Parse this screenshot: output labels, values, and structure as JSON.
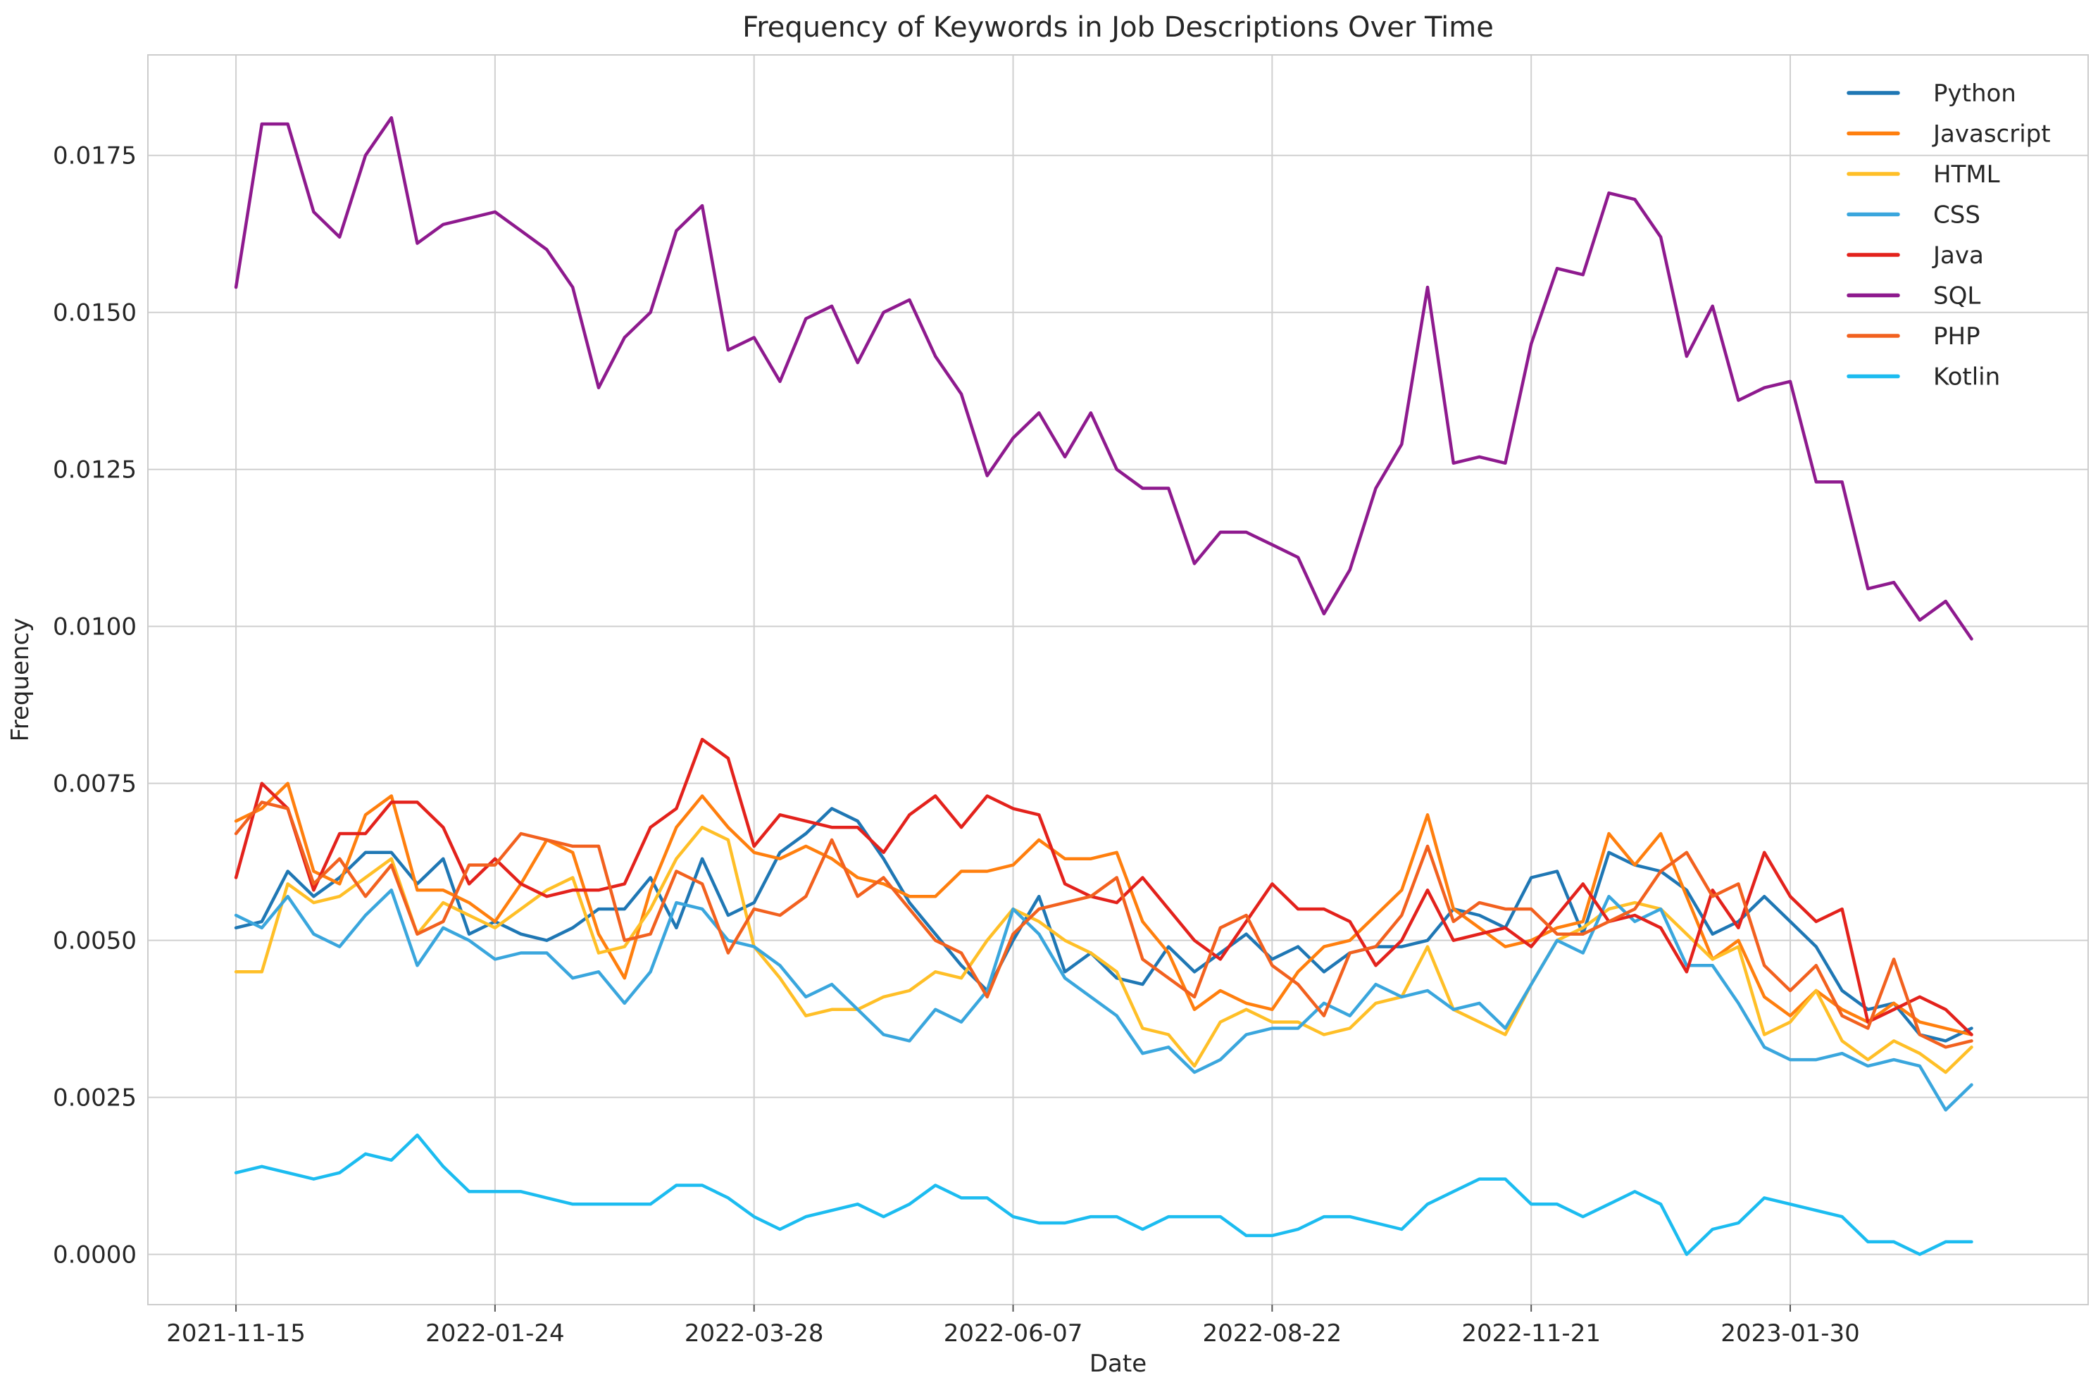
{
  "chart_data": {
    "type": "line",
    "title": "Frequency of Keywords in Job Descriptions Over Time",
    "xlabel": "Date",
    "ylabel": "Frequency",
    "ylim": [
      -0.0008,
      0.0191
    ],
    "xlim": [
      -3.4,
      71.5
    ],
    "grid": true,
    "legend_position": "top-right",
    "x_tick_labels": [
      "2021-11-15",
      "2022-01-24",
      "2022-03-28",
      "2022-06-07",
      "2022-08-22",
      "2022-11-21",
      "2023-01-30"
    ],
    "x_tick_positions": [
      0,
      10,
      20,
      30,
      40,
      50,
      60
    ],
    "y_ticks": [
      0.0,
      0.0025,
      0.005,
      0.0075,
      0.01,
      0.0125,
      0.015,
      0.0175
    ],
    "y_tick_labels": [
      "0.0000",
      "0.0025",
      "0.0050",
      "0.0075",
      "0.0100",
      "0.0125",
      "0.0150",
      "0.0175"
    ],
    "x": [
      0,
      1,
      2,
      3,
      4,
      5,
      6,
      7,
      8,
      9,
      10,
      11,
      12,
      13,
      14,
      15,
      16,
      17,
      18,
      19,
      20,
      21,
      22,
      23,
      24,
      25,
      26,
      27,
      28,
      29,
      30,
      31,
      32,
      33,
      34,
      35,
      36,
      37,
      38,
      39,
      40,
      41,
      42,
      43,
      44,
      45,
      46,
      47,
      48,
      49,
      50,
      51,
      52,
      53,
      54,
      55,
      56,
      57,
      58,
      59,
      60,
      61,
      62,
      63,
      64,
      65,
      66,
      67
    ],
    "series": [
      {
        "name": "Python",
        "color": "#1f77b4",
        "values": [
          0.0052,
          0.0053,
          0.0061,
          0.0057,
          0.006,
          0.0064,
          0.0064,
          0.0059,
          0.0063,
          0.0051,
          0.0053,
          0.0051,
          0.005,
          0.0052,
          0.0055,
          0.0055,
          0.006,
          0.0052,
          0.0063,
          0.0054,
          0.0056,
          0.0064,
          0.0067,
          0.0071,
          0.0069,
          0.0063,
          0.0056,
          0.0051,
          0.0046,
          0.0042,
          0.005,
          0.0057,
          0.0045,
          0.0048,
          0.0044,
          0.0043,
          0.0049,
          0.0045,
          0.0048,
          0.0051,
          0.0047,
          0.0049,
          0.0045,
          0.0048,
          0.0049,
          0.0049,
          0.005,
          0.0055,
          0.0054,
          0.0052,
          0.006,
          0.0061,
          0.0051,
          0.0064,
          0.0062,
          0.0061,
          0.0058,
          0.0051,
          0.0053,
          0.0057,
          0.0053,
          0.0049,
          0.0042,
          0.0039,
          0.004,
          0.0035,
          0.0034,
          0.0036
        ]
      },
      {
        "name": "Javascript",
        "color": "#ff7f0e",
        "values": [
          0.0069,
          0.0071,
          0.0075,
          0.0061,
          0.0059,
          0.007,
          0.0073,
          0.0058,
          0.0058,
          0.0056,
          0.0053,
          0.0059,
          0.0066,
          0.0064,
          0.0051,
          0.0044,
          0.0058,
          0.0068,
          0.0073,
          0.0068,
          0.0064,
          0.0063,
          0.0065,
          0.0063,
          0.006,
          0.0059,
          0.0057,
          0.0057,
          0.0061,
          0.0061,
          0.0062,
          0.0066,
          0.0063,
          0.0063,
          0.0064,
          0.0053,
          0.0048,
          0.0039,
          0.0042,
          0.004,
          0.0039,
          0.0045,
          0.0049,
          0.005,
          0.0054,
          0.0058,
          0.007,
          0.0055,
          0.0052,
          0.0049,
          0.005,
          0.0052,
          0.0053,
          0.0067,
          0.0062,
          0.0067,
          0.0057,
          0.0047,
          0.005,
          0.0041,
          0.0038,
          0.0042,
          0.0039,
          0.0037,
          0.004,
          0.0037,
          0.0036,
          0.0035
        ]
      },
      {
        "name": "HTML",
        "color": "#ffbf27",
        "values": [
          0.0045,
          0.0045,
          0.0059,
          0.0056,
          0.0057,
          0.006,
          0.0063,
          0.0051,
          0.0056,
          0.0054,
          0.0052,
          0.0055,
          0.0058,
          0.006,
          0.0048,
          0.0049,
          0.0055,
          0.0063,
          0.0068,
          0.0066,
          0.0049,
          0.0044,
          0.0038,
          0.0039,
          0.0039,
          0.0041,
          0.0042,
          0.0045,
          0.0044,
          0.005,
          0.0055,
          0.0053,
          0.005,
          0.0048,
          0.0045,
          0.0036,
          0.0035,
          0.003,
          0.0037,
          0.0039,
          0.0037,
          0.0037,
          0.0035,
          0.0036,
          0.004,
          0.0041,
          0.0049,
          0.0039,
          0.0037,
          0.0035,
          0.0043,
          0.005,
          0.0052,
          0.0055,
          0.0056,
          0.0055,
          0.0051,
          0.0047,
          0.0049,
          0.0035,
          0.0037,
          0.0042,
          0.0034,
          0.0031,
          0.0034,
          0.0032,
          0.0029,
          0.0033
        ]
      },
      {
        "name": "CSS",
        "color": "#3aa6dd",
        "values": [
          0.0054,
          0.0052,
          0.0057,
          0.0051,
          0.0049,
          0.0054,
          0.0058,
          0.0046,
          0.0052,
          0.005,
          0.0047,
          0.0048,
          0.0048,
          0.0044,
          0.0045,
          0.004,
          0.0045,
          0.0056,
          0.0055,
          0.005,
          0.0049,
          0.0046,
          0.0041,
          0.0043,
          0.0039,
          0.0035,
          0.0034,
          0.0039,
          0.0037,
          0.0042,
          0.0055,
          0.0051,
          0.0044,
          0.0041,
          0.0038,
          0.0032,
          0.0033,
          0.0029,
          0.0031,
          0.0035,
          0.0036,
          0.0036,
          0.004,
          0.0038,
          0.0043,
          0.0041,
          0.0042,
          0.0039,
          0.004,
          0.0036,
          0.0043,
          0.005,
          0.0048,
          0.0057,
          0.0053,
          0.0055,
          0.0046,
          0.0046,
          0.004,
          0.0033,
          0.0031,
          0.0031,
          0.0032,
          0.003,
          0.0031,
          0.003,
          0.0023,
          0.0027
        ]
      },
      {
        "name": "Java",
        "color": "#e3221c",
        "values": [
          0.006,
          0.0075,
          0.0071,
          0.0058,
          0.0067,
          0.0067,
          0.0072,
          0.0072,
          0.0068,
          0.0059,
          0.0063,
          0.0059,
          0.0057,
          0.0058,
          0.0058,
          0.0059,
          0.0068,
          0.0071,
          0.0082,
          0.0079,
          0.0065,
          0.007,
          0.0069,
          0.0068,
          0.0068,
          0.0064,
          0.007,
          0.0073,
          0.0068,
          0.0073,
          0.0071,
          0.007,
          0.0059,
          0.0057,
          0.0056,
          0.006,
          0.0055,
          0.005,
          0.0047,
          0.0053,
          0.0059,
          0.0055,
          0.0055,
          0.0053,
          0.0046,
          0.005,
          0.0058,
          0.005,
          0.0051,
          0.0052,
          0.0049,
          0.0054,
          0.0059,
          0.0053,
          0.0054,
          0.0052,
          0.0045,
          0.0058,
          0.0052,
          0.0064,
          0.0057,
          0.0053,
          0.0055,
          0.0037,
          0.0039,
          0.0041,
          0.0039,
          0.0035
        ]
      },
      {
        "name": "SQL",
        "color": "#8e1a8e",
        "values": [
          0.0154,
          0.018,
          0.018,
          0.0166,
          0.0162,
          0.0175,
          0.0181,
          0.0161,
          0.0164,
          0.0165,
          0.0166,
          0.0163,
          0.016,
          0.0154,
          0.0138,
          0.0146,
          0.015,
          0.0163,
          0.0167,
          0.0144,
          0.0146,
          0.0139,
          0.0149,
          0.0151,
          0.0142,
          0.015,
          0.0152,
          0.0143,
          0.0137,
          0.0124,
          0.013,
          0.0134,
          0.0127,
          0.0134,
          0.0125,
          0.0122,
          0.0122,
          0.011,
          0.0115,
          0.0115,
          0.0113,
          0.0111,
          0.0102,
          0.0109,
          0.0122,
          0.0129,
          0.0154,
          0.0126,
          0.0127,
          0.0126,
          0.0145,
          0.0157,
          0.0156,
          0.0169,
          0.0168,
          0.0162,
          0.0143,
          0.0151,
          0.0136,
          0.0138,
          0.0139,
          0.0123,
          0.0123,
          0.0106,
          0.0107,
          0.0101,
          0.0104,
          0.0098
        ]
      },
      {
        "name": "PHP",
        "color": "#f2611f",
        "values": [
          0.0067,
          0.0072,
          0.0071,
          0.0059,
          0.0063,
          0.0057,
          0.0062,
          0.0051,
          0.0053,
          0.0062,
          0.0062,
          0.0067,
          0.0066,
          0.0065,
          0.0065,
          0.005,
          0.0051,
          0.0061,
          0.0059,
          0.0048,
          0.0055,
          0.0054,
          0.0057,
          0.0066,
          0.0057,
          0.006,
          0.0055,
          0.005,
          0.0048,
          0.0041,
          0.0051,
          0.0055,
          0.0056,
          0.0057,
          0.006,
          0.0047,
          0.0044,
          0.0041,
          0.0052,
          0.0054,
          0.0046,
          0.0043,
          0.0038,
          0.0048,
          0.0049,
          0.0054,
          0.0065,
          0.0053,
          0.0056,
          0.0055,
          0.0055,
          0.0051,
          0.0051,
          0.0053,
          0.0055,
          0.0061,
          0.0064,
          0.0057,
          0.0059,
          0.0046,
          0.0042,
          0.0046,
          0.0038,
          0.0036,
          0.0047,
          0.0035,
          0.0033,
          0.0034
        ]
      },
      {
        "name": "Kotlin",
        "color": "#1cbcf0",
        "values": [
          0.0013,
          0.0014,
          0.0013,
          0.0012,
          0.0013,
          0.0016,
          0.0015,
          0.0019,
          0.0014,
          0.001,
          0.001,
          0.001,
          0.0009,
          0.0008,
          0.0008,
          0.0008,
          0.0008,
          0.0011,
          0.0011,
          0.0009,
          0.0006,
          0.0004,
          0.0006,
          0.0007,
          0.0008,
          0.0006,
          0.0008,
          0.0011,
          0.0009,
          0.0009,
          0.0006,
          0.0005,
          0.0005,
          0.0006,
          0.0006,
          0.0004,
          0.0006,
          0.0006,
          0.0006,
          0.0003,
          0.0003,
          0.0004,
          0.0006,
          0.0006,
          0.0005,
          0.0004,
          0.0008,
          0.001,
          0.0012,
          0.0012,
          0.0008,
          0.0008,
          0.0006,
          0.0008,
          0.001,
          0.0008,
          0.0,
          0.0004,
          0.0005,
          0.0009,
          0.0008,
          0.0007,
          0.0006,
          0.0002,
          0.0002,
          0.0,
          0.0002,
          0.0002
        ]
      }
    ]
  }
}
